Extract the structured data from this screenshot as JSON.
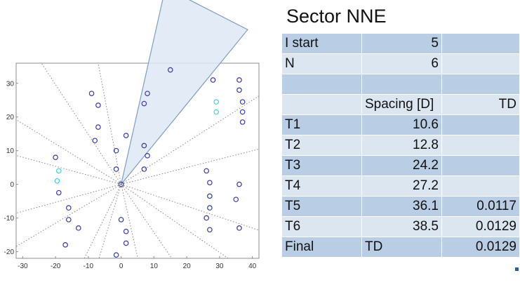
{
  "sheet": {
    "title": "Sector NNE",
    "rows": [
      {
        "label": "I start",
        "b": "5",
        "c": "",
        "b_align": "num"
      },
      {
        "label": "N",
        "b": "6",
        "c": "",
        "b_align": "num"
      },
      {
        "label": "",
        "b": "",
        "c": ""
      },
      {
        "label": "",
        "b": "Spacing [D]",
        "c": "TD",
        "b_align": "text"
      },
      {
        "label": "T1",
        "b": "10.6",
        "c": "",
        "b_align": "num"
      },
      {
        "label": "T2",
        "b": "12.8",
        "c": "",
        "b_align": "num"
      },
      {
        "label": "T3",
        "b": "24.2",
        "c": "",
        "b_align": "num"
      },
      {
        "label": "T4",
        "b": "27.2",
        "c": "",
        "b_align": "num"
      },
      {
        "label": "T5",
        "b": "36.1",
        "c": "0.0117",
        "b_align": "num"
      },
      {
        "label": "T6",
        "b": "38.5",
        "c": "0.0129",
        "b_align": "num"
      },
      {
        "label": "Final",
        "b": "TD",
        "c": "0.0129",
        "b_align": "text"
      }
    ]
  },
  "colors": {
    "row_dark": "#b9cde5",
    "row_light": "#dce6f1",
    "marker": "#3a3aa8",
    "marker_highlight": "#3fd0e0",
    "sector_fill": "#dde8f5",
    "sector_stroke": "#7f9fc3"
  },
  "chart_data": {
    "type": "scatter",
    "title": "",
    "xlabel": "",
    "ylabel": "",
    "xlim": [
      -32,
      42
    ],
    "ylim": [
      -22,
      36
    ],
    "x_ticks": [
      -30,
      -20,
      -10,
      0,
      10,
      20,
      30,
      40
    ],
    "y_ticks": [
      -20,
      -10,
      0,
      10,
      20,
      30
    ],
    "grid": false,
    "sector": {
      "label": "Sector NNE",
      "from_deg": 50,
      "to_deg": 77,
      "radius": 60
    },
    "rays_deg": [
      14,
      32,
      50,
      77,
      101,
      124,
      149,
      165,
      195,
      210,
      243,
      253,
      283,
      305,
      326,
      342
    ],
    "series": [
      {
        "role": "turbines",
        "points": [
          [
            15,
            34
          ],
          [
            28,
            31
          ],
          [
            36,
            31
          ],
          [
            36,
            28
          ],
          [
            37,
            24.5
          ],
          [
            37,
            21.5
          ],
          [
            37,
            18.5
          ],
          [
            8,
            27
          ],
          [
            7,
            24
          ],
          [
            7,
            11.5
          ],
          [
            8,
            8.5
          ],
          [
            7,
            4.5
          ],
          [
            -9,
            27
          ],
          [
            -7,
            23.5
          ],
          [
            -7,
            17
          ],
          [
            -8,
            13
          ],
          [
            1.5,
            14.5
          ],
          [
            -1.5,
            10
          ],
          [
            -1.5,
            4.5
          ],
          [
            -20,
            8
          ],
          [
            -19,
            -2.5
          ],
          [
            -16,
            -7
          ],
          [
            -16,
            -10.5
          ],
          [
            -13,
            -13
          ],
          [
            -17,
            -18
          ],
          [
            0,
            -10.5
          ],
          [
            1.5,
            -14
          ],
          [
            1.5,
            -17.5
          ],
          [
            -1.5,
            -21
          ],
          [
            26,
            4
          ],
          [
            27,
            0.5
          ],
          [
            27,
            -3.5
          ],
          [
            27,
            -7
          ],
          [
            26,
            -10
          ],
          [
            27,
            -13.5
          ],
          [
            36,
            0
          ],
          [
            35,
            -4.5
          ],
          [
            36,
            -13
          ],
          [
            0,
            0
          ]
        ]
      },
      {
        "role": "highlighted",
        "points": [
          [
            -19,
            4
          ],
          [
            -19.5,
            1
          ],
          [
            29,
            24.5
          ],
          [
            29,
            21.5
          ]
        ]
      }
    ]
  }
}
